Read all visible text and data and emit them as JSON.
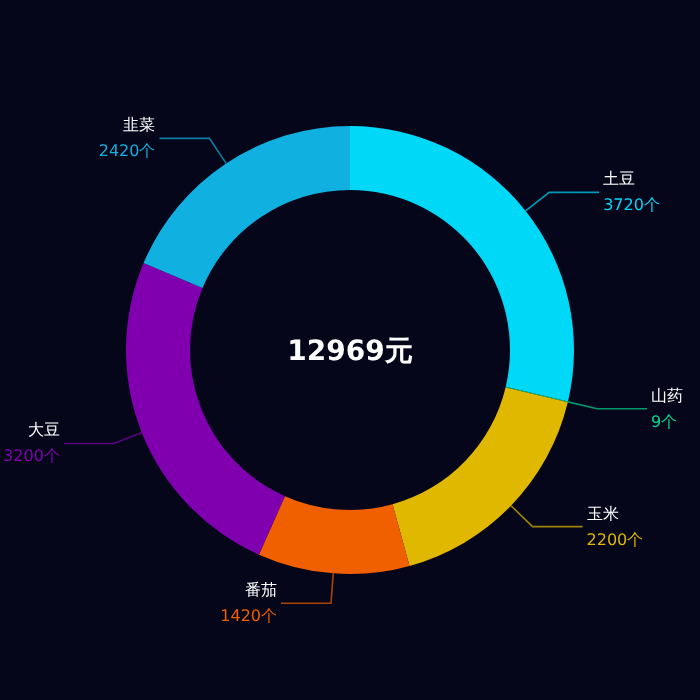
{
  "chart_data": {
    "type": "donut",
    "title": "12969元",
    "categories": [
      "土豆",
      "山药",
      "玉米",
      "番茄",
      "大豆",
      "韭菜"
    ],
    "values": [
      3720,
      9,
      2200,
      1420,
      3200,
      2420
    ],
    "value_labels": [
      "3720个",
      "9个",
      "2200个",
      "1420个",
      "3200个",
      "2420个"
    ],
    "colors": [
      "#00d8f8",
      "#00d890",
      "#e0b800",
      "#f06000",
      "#8000b0",
      "#10b0e0"
    ]
  }
}
